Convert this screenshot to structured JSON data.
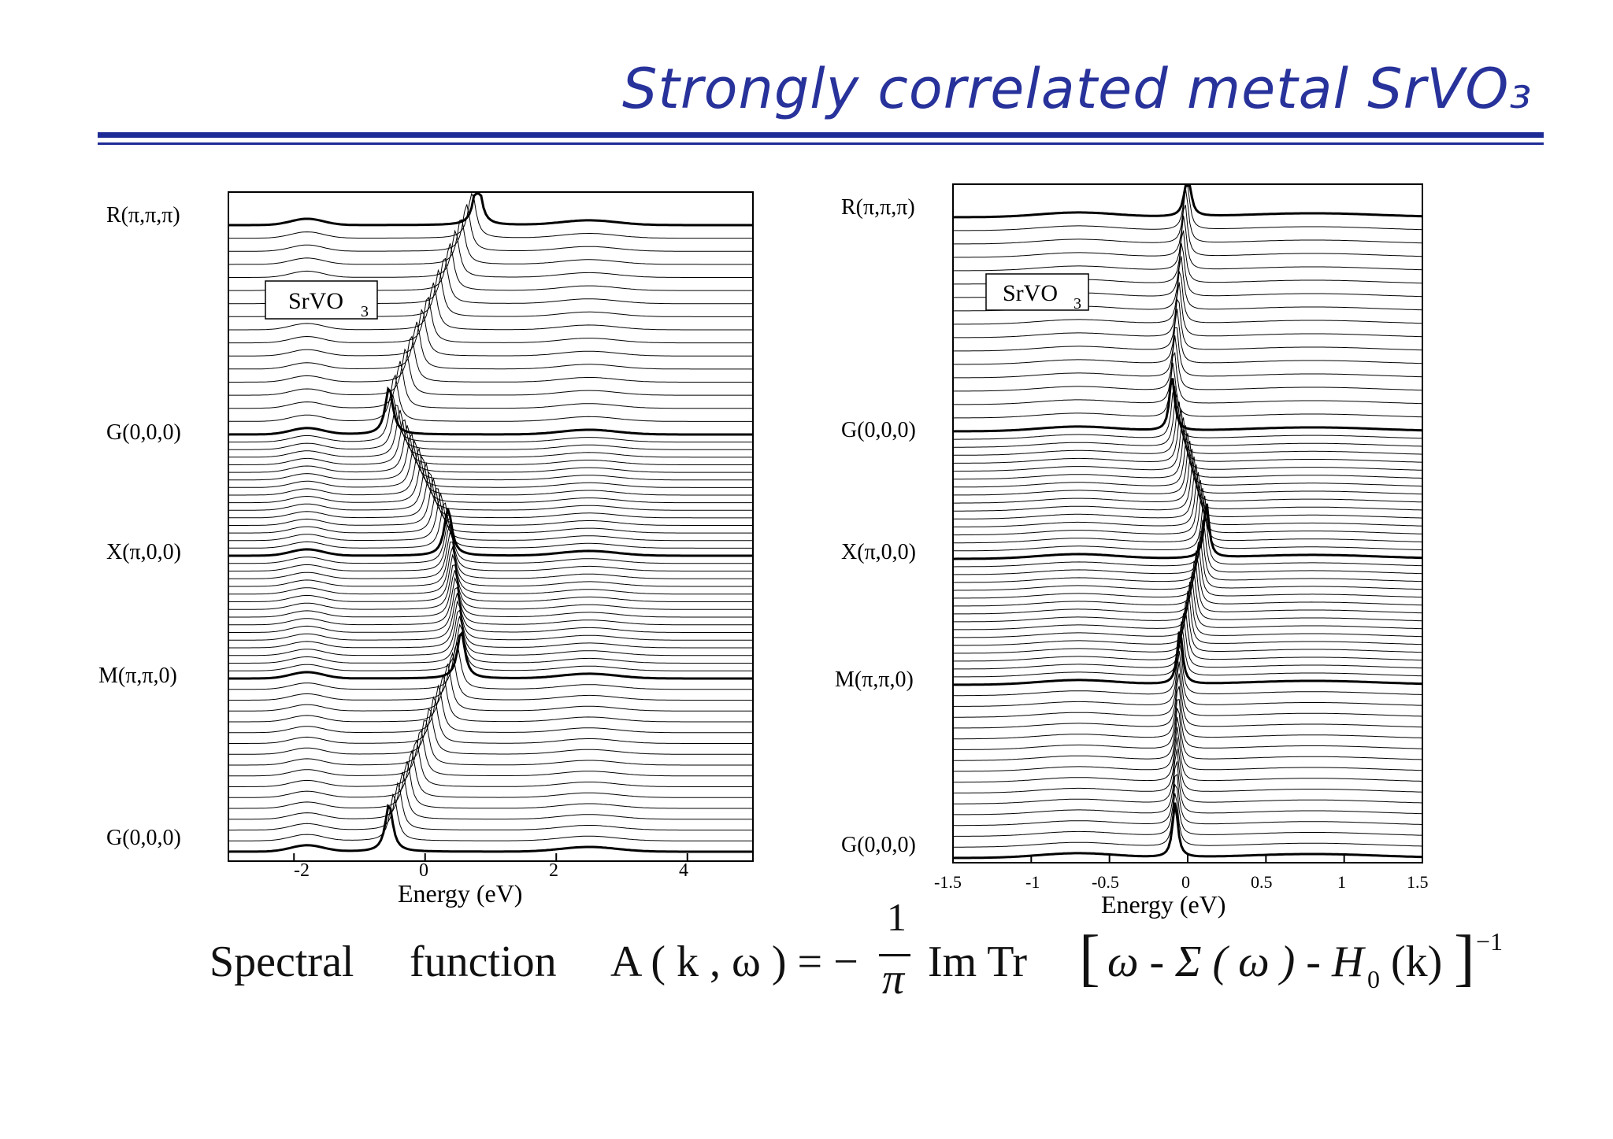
{
  "slide": {
    "title": "Strongly correlated metal SrVO₃"
  },
  "chart_data": [
    {
      "type": "line",
      "panel": "left",
      "inset_label": "SrVO",
      "inset_subscript": "3",
      "xlabel": "Energy (eV)",
      "xlim": [
        -3,
        5
      ],
      "xticks": [
        "-2",
        "0",
        "2",
        "4"
      ],
      "y_kpoints": [
        "R(π,π,π)",
        "G(0,0,0)",
        "X(π,0,0)",
        "M(π,π,0)",
        "G(0,0,0)"
      ],
      "series_note_values": {
        "spectral_lines_per_segment": 16
      }
    },
    {
      "type": "line",
      "panel": "right",
      "inset_label": "SrVO",
      "inset_subscript": "3",
      "xlabel": "Energy (eV)",
      "xlim": [
        -1.5,
        1.5
      ],
      "xticks": [
        "-1.5",
        "-1",
        "-0.5",
        "0",
        "0.5",
        "1",
        "1.5"
      ],
      "y_kpoints": [
        "R(π,π,π)",
        "G(0,0,0)",
        "X(π,0,0)",
        "M(π,π,0)",
        "G(0,0,0)"
      ],
      "series_note_values": {
        "spectral_lines_per_segment": 16
      }
    }
  ],
  "formula": {
    "label1": "Spectral",
    "label2": "function",
    "lhs": "A ( k , ω ) = −",
    "numerator": "1",
    "denominator": "π",
    "operator": "Im  Tr",
    "bracket_open": "[",
    "body": "ω - Σ ( ω ) - H",
    "sub": "0",
    "arg": "(k)",
    "bracket_close": "]",
    "sup": "−1"
  }
}
